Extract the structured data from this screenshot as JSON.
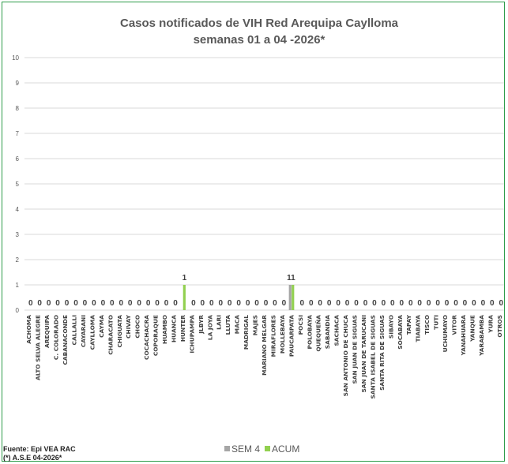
{
  "chart_data": {
    "type": "bar",
    "title": "Casos notificados de VIH Red Arequipa Caylloma",
    "subtitle": "semanas 01 a 04 -2026*",
    "ylim": [
      0,
      10
    ],
    "yticks": [
      0,
      1,
      2,
      3,
      4,
      5,
      6,
      7,
      8,
      9,
      10
    ],
    "grid": true,
    "legend_placement": "bottom",
    "categories": [
      "ACHOMA",
      "ALTO SELVA ALEGRE",
      "AREQUIPA",
      "C. COLORADO",
      "CABANACONDE",
      "CALLALLI",
      "CAYARANI",
      "CAYLLOMA",
      "CAYMA",
      "CHARACATO",
      "CHIGUATA",
      "CHIVAY",
      "CHOCO",
      "COCACHACRA",
      "COPORAQUE",
      "HUAMBO",
      "HUANCA",
      "HUNTER",
      "ICHUPAMPA",
      "JLBYR",
      "LA JOYA",
      "LARI",
      "LLUTA",
      "MACA",
      "MADRIGAL",
      "MAJES",
      "MARIANO MELGAR",
      "MIRAFLORES",
      "MOLLEBAYA",
      "PAUCARPATA",
      "POCSI",
      "POLOBAYA",
      "QUEQUEÑA",
      "SABANDIA",
      "SACHACA",
      "SAN ANTONIO DE CHUCA",
      "SAN JUAN DE SIGUAS",
      "SAN JUAN DE TARUCANI",
      "SANTA ISABEL DE SIGUAS",
      "SANTA RITA DE SIGUAS",
      "SIBAYO",
      "SOCABAYA",
      "TAPAY",
      "TIABAYA",
      "TISCO",
      "TUTI",
      "UCHUMAYO",
      "VITOR",
      "YANAHUARA",
      "YANQUE",
      "YARABAMBA",
      "YURA",
      "OTROS"
    ],
    "series": [
      {
        "name": "SEM 4",
        "color": "#a6a6a6",
        "values": [
          0,
          0,
          0,
          0,
          0,
          0,
          0,
          0,
          0,
          0,
          0,
          0,
          0,
          0,
          0,
          0,
          0,
          0,
          0,
          0,
          0,
          0,
          0,
          0,
          0,
          0,
          0,
          0,
          0,
          1,
          0,
          0,
          0,
          0,
          0,
          0,
          0,
          0,
          0,
          0,
          0,
          0,
          0,
          0,
          0,
          0,
          0,
          0,
          0,
          0,
          0,
          0,
          0
        ]
      },
      {
        "name": "ACUM",
        "color": "#92d050",
        "values": [
          0,
          0,
          0,
          0,
          0,
          0,
          0,
          0,
          0,
          0,
          0,
          0,
          0,
          0,
          0,
          0,
          0,
          1,
          0,
          0,
          0,
          0,
          0,
          0,
          0,
          0,
          0,
          0,
          0,
          1,
          0,
          0,
          0,
          0,
          0,
          0,
          0,
          0,
          0,
          0,
          0,
          0,
          0,
          0,
          0,
          0,
          0,
          0,
          0,
          0,
          0,
          0,
          0
        ]
      }
    ]
  },
  "source": {
    "line1": "Fuente: Epi VEA RAC",
    "line2": "(*) A.S.E 04-2026*"
  },
  "colors": {
    "grid": "#d9d9d9",
    "frame": "#2e9c4a"
  }
}
